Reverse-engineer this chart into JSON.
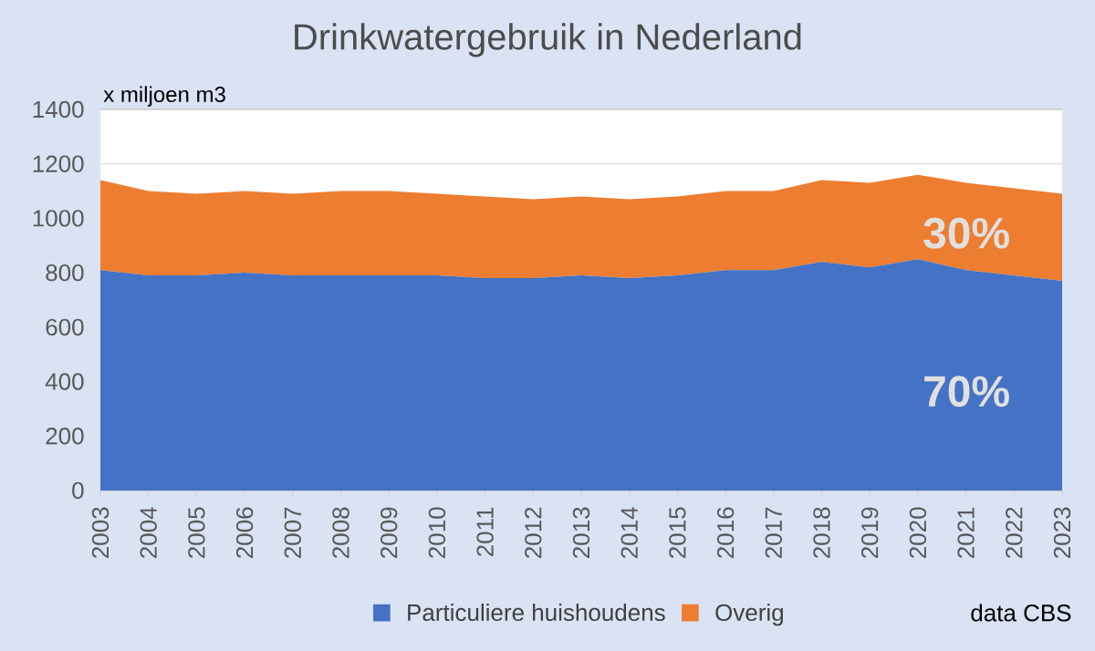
{
  "chart_data": {
    "type": "area",
    "stacked": true,
    "title": "Drinkwatergebruik in Nederland",
    "ylabel": "x miljoen m3",
    "categories": [
      "2003",
      "2004",
      "2005",
      "2006",
      "2007",
      "2008",
      "2009",
      "2010",
      "2011",
      "2012",
      "2013",
      "2014",
      "2015",
      "2016",
      "2017",
      "2018",
      "2019",
      "2020",
      "2021",
      "2022",
      "2023"
    ],
    "series": [
      {
        "name": "Particuliere huishoudens",
        "color": "#4472c4",
        "values": [
          810,
          790,
          790,
          800,
          790,
          790,
          790,
          790,
          780,
          780,
          790,
          780,
          790,
          810,
          810,
          840,
          820,
          850,
          810,
          790,
          770
        ]
      },
      {
        "name": "Overig",
        "color": "#ed7d31",
        "values": [
          330,
          310,
          300,
          300,
          300,
          310,
          310,
          300,
          300,
          290,
          290,
          290,
          290,
          290,
          290,
          300,
          310,
          310,
          320,
          320,
          320
        ]
      }
    ],
    "ylim": [
      0,
      1400
    ],
    "yticks": [
      0,
      200,
      400,
      600,
      800,
      1000,
      1200,
      1400
    ],
    "grid": "y",
    "legend": "bottom",
    "annotations": [
      "30%",
      "70%",
      "data CBS"
    ]
  }
}
